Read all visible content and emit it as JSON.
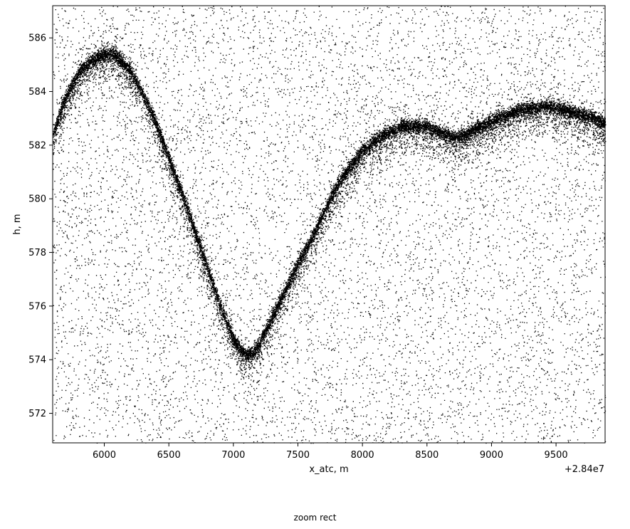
{
  "chart_data": {
    "type": "scatter",
    "title": "",
    "xlabel": "x_atc, m",
    "ylabel": "h, m",
    "x_offset_label": "+2.84e7",
    "xlim": [
      5600,
      9880
    ],
    "ylim": [
      570.9,
      587.2
    ],
    "xticks": [
      6000,
      6500,
      7000,
      7500,
      8000,
      8500,
      9000,
      9500
    ],
    "xtick_labels": [
      "6000",
      "6500",
      "7000",
      "7500",
      "8000",
      "8500",
      "9000",
      "9500"
    ],
    "yticks": [
      572,
      574,
      576,
      578,
      580,
      582,
      584,
      586
    ],
    "ytick_labels": [
      "572",
      "574",
      "576",
      "578",
      "580",
      "582",
      "584",
      "586"
    ],
    "marker_color": "#000000",
    "surface_series": {
      "name": "",
      "x": [
        5600,
        5700,
        5800,
        5900,
        6000,
        6050,
        6100,
        6200,
        6300,
        6400,
        6500,
        6600,
        6700,
        6800,
        6900,
        7000,
        7050,
        7100,
        7150,
        7200,
        7300,
        7400,
        7500,
        7600,
        7700,
        7800,
        7900,
        8000,
        8100,
        8200,
        8300,
        8400,
        8500,
        8600,
        8700,
        8800,
        8900,
        9000,
        9100,
        9200,
        9300,
        9400,
        9500,
        9600,
        9700,
        9800,
        9880
      ],
      "y": [
        582.4,
        583.8,
        584.7,
        585.2,
        585.4,
        585.45,
        585.3,
        584.8,
        583.9,
        582.8,
        581.5,
        580.2,
        578.8,
        577.4,
        576.0,
        574.8,
        574.4,
        574.2,
        574.25,
        574.6,
        575.6,
        576.6,
        577.6,
        578.5,
        579.5,
        580.5,
        581.2,
        581.8,
        582.2,
        582.5,
        582.7,
        582.75,
        582.7,
        582.5,
        582.3,
        582.4,
        582.7,
        582.9,
        583.1,
        583.3,
        583.4,
        583.45,
        583.4,
        583.3,
        583.15,
        583.0,
        582.8
      ]
    },
    "background_noise": {
      "name": "",
      "x_range": [
        5600,
        9880
      ],
      "y_range": [
        570.9,
        587.2
      ],
      "point_count": 9000
    }
  },
  "status_bar": {
    "text": "zoom rect"
  }
}
